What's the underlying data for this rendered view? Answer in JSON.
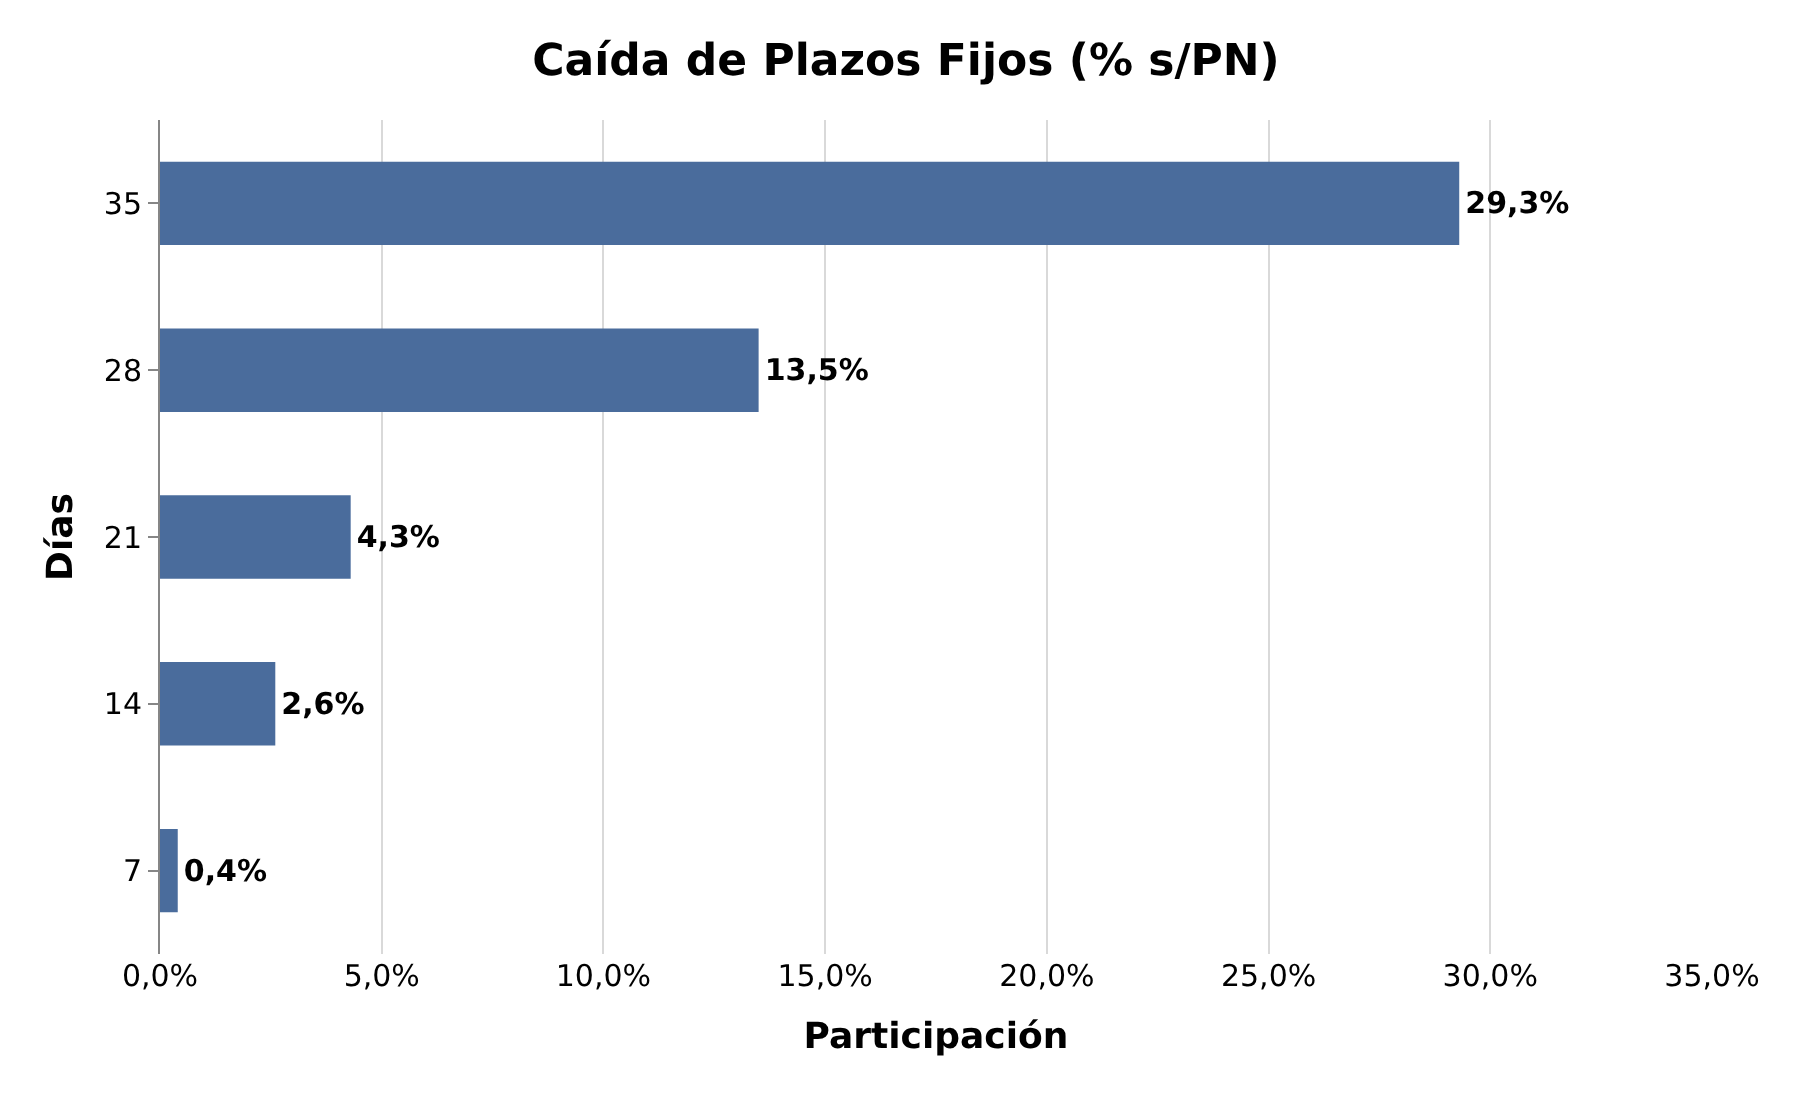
{
  "chart_data": {
    "type": "bar",
    "orientation": "horizontal",
    "title": "Caída de Plazos Fijos (% s/PN)",
    "xlabel": "Participación",
    "ylabel": "Días",
    "categories": [
      "35",
      "28",
      "21",
      "14",
      "7"
    ],
    "values": [
      29.3,
      13.5,
      4.3,
      2.6,
      0.4
    ],
    "value_labels": [
      "29,3%",
      "13,5%",
      "4,3%",
      "2,6%",
      "0,4%"
    ],
    "color": "#4a6c9c",
    "xlim": [
      0,
      35
    ],
    "xticks": [
      {
        "value": 0,
        "label": "0,0%"
      },
      {
        "value": 5,
        "label": "5,0%"
      },
      {
        "value": 10,
        "label": "10,0%"
      },
      {
        "value": 15,
        "label": "15,0%"
      },
      {
        "value": 20,
        "label": "20,0%"
      },
      {
        "value": 25,
        "label": "25,0%"
      },
      {
        "value": 30,
        "label": "30,0%"
      },
      {
        "value": 35,
        "label": "35,0%"
      }
    ],
    "grid": "x",
    "legend": false
  }
}
